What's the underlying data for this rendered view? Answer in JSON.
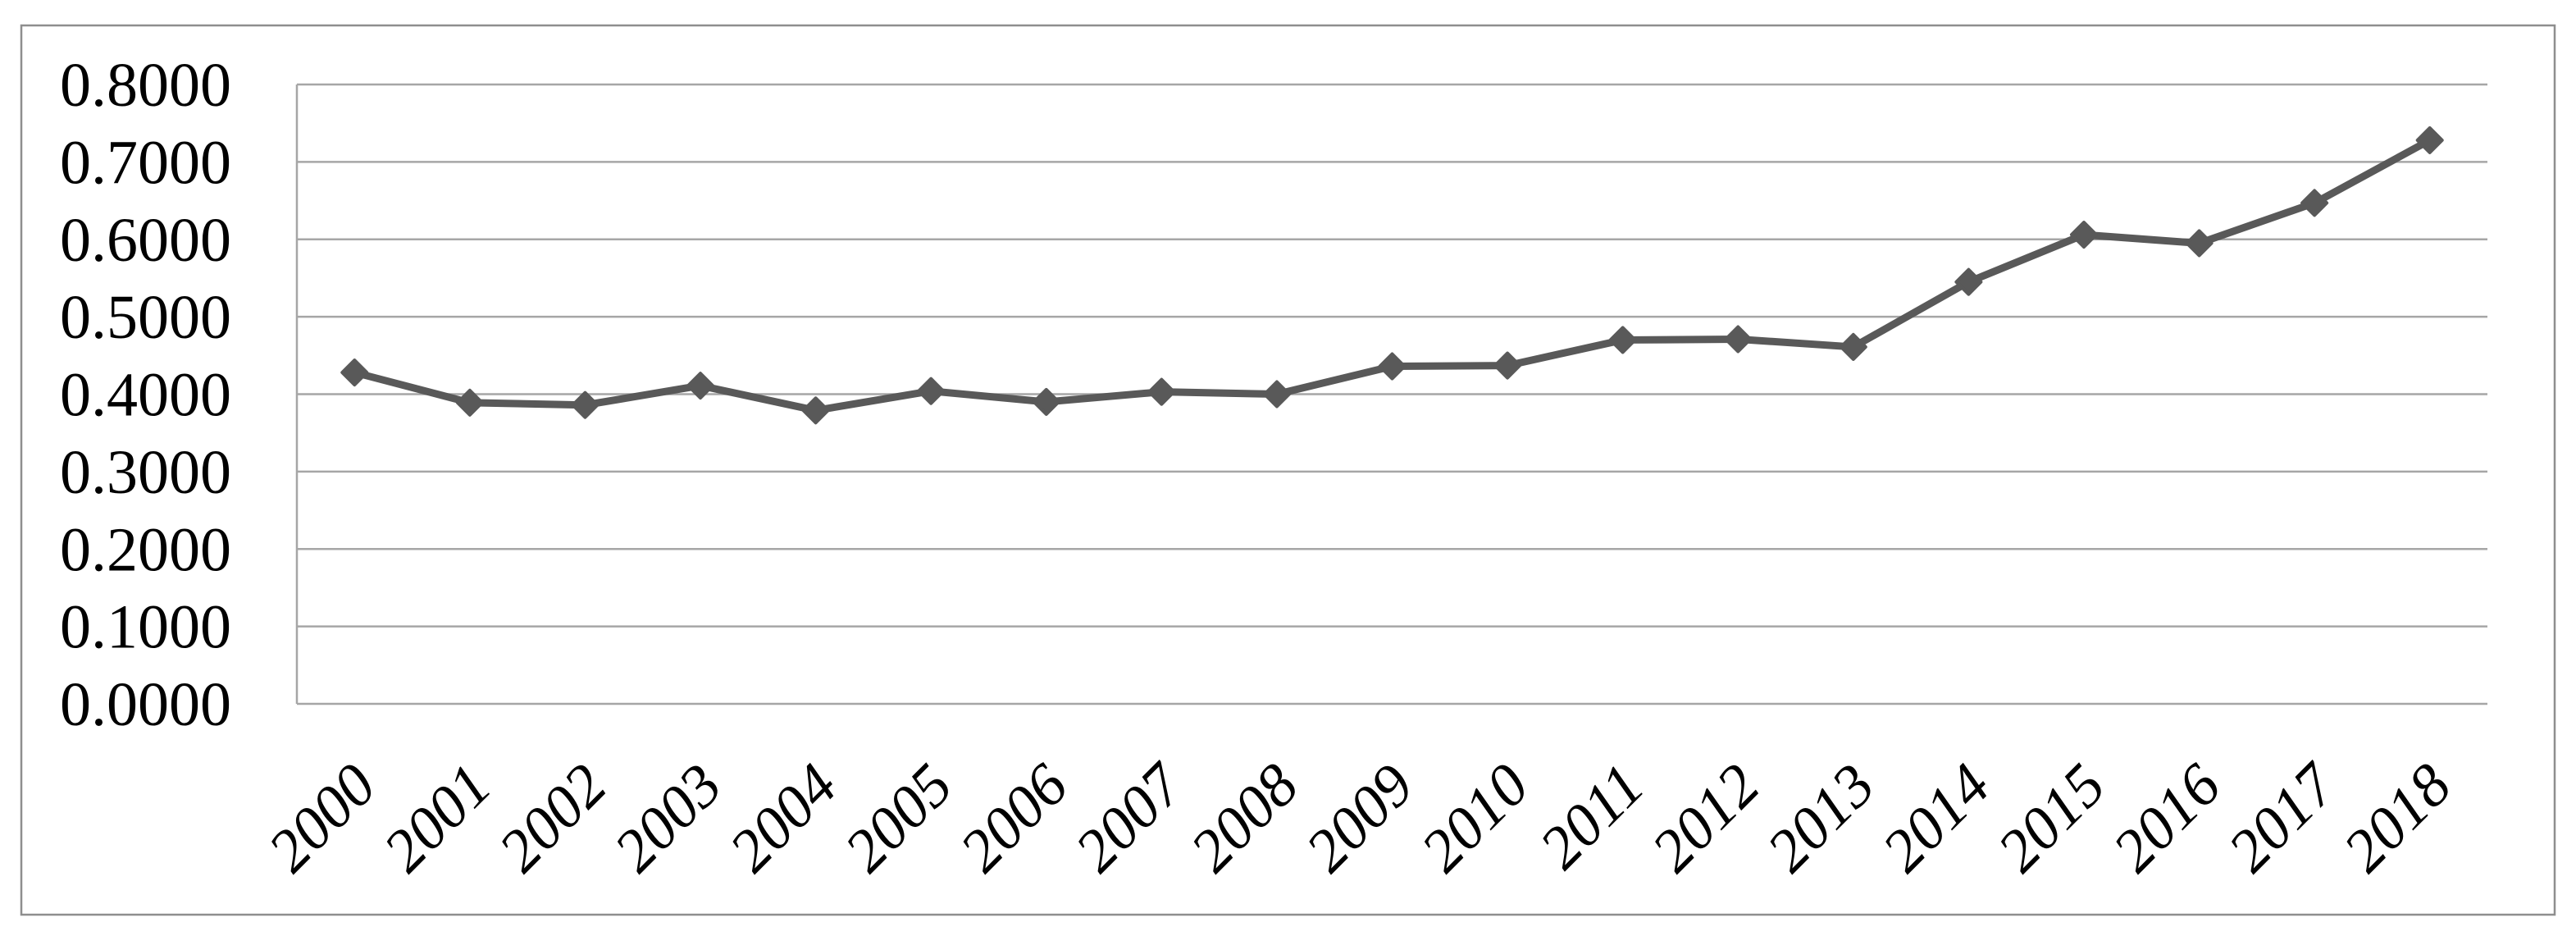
{
  "figure": {
    "background": "#ffffff",
    "border_color": "#8e8e8e"
  },
  "chart_data": {
    "type": "line",
    "title": "",
    "xlabel": "",
    "ylabel": "",
    "categories": [
      "2000",
      "2001",
      "2002",
      "2003",
      "2004",
      "2005",
      "2006",
      "2007",
      "2008",
      "2009",
      "2010",
      "2011",
      "2012",
      "2013",
      "2014",
      "2015",
      "2016",
      "2017",
      "2018"
    ],
    "values": [
      0.428,
      0.389,
      0.386,
      0.411,
      0.379,
      0.404,
      0.39,
      0.403,
      0.4,
      0.436,
      0.437,
      0.47,
      0.471,
      0.461,
      0.545,
      0.606,
      0.595,
      0.647,
      0.728
    ],
    "ylim": [
      0,
      0.8
    ],
    "ytick_step": 0.1,
    "ytick_labels": [
      "0.0000",
      "0.1000",
      "0.2000",
      "0.3000",
      "0.4000",
      "0.5000",
      "0.6000",
      "0.7000",
      "0.8000"
    ],
    "grid": true,
    "legend": false,
    "marker": "diamond",
    "line_color": "#595959",
    "marker_color": "#595959",
    "gridline_color": "#a6a6a6",
    "axis_line_color": "#a6a6a6",
    "tick_label_color": "#000000"
  }
}
